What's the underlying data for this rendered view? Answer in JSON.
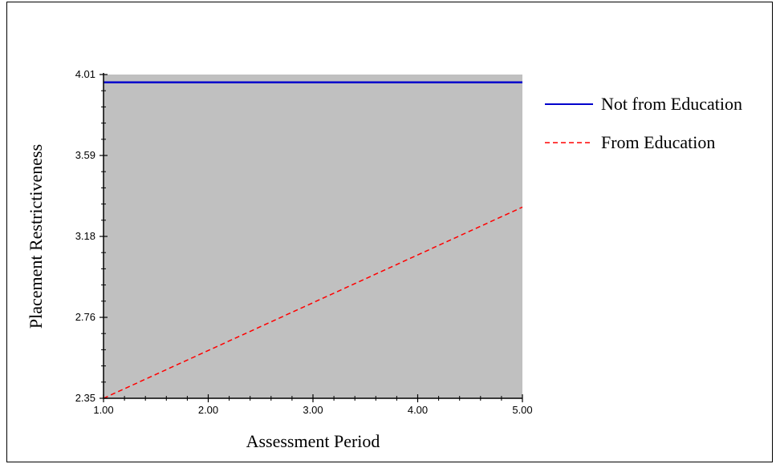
{
  "chart_data": {
    "type": "line",
    "xlabel": "Assessment Period",
    "ylabel": "Placement Restrictiveness",
    "xlim": [
      1.0,
      5.0
    ],
    "ylim": [
      2.35,
      4.01
    ],
    "xticks": [
      "1.00",
      "2.00",
      "3.00",
      "4.00",
      "5.00"
    ],
    "yticks": [
      "2.35",
      "2.76",
      "3.18",
      "3.59",
      "4.01"
    ],
    "plot_background": "#c0c0c0",
    "legend_position": "right",
    "series": [
      {
        "name": "Not from Education",
        "color": "#0000cc",
        "style": "solid",
        "x": [
          1.0,
          5.0
        ],
        "y": [
          3.97,
          3.97
        ]
      },
      {
        "name": "From Education",
        "color": "#ff0000",
        "style": "dashed",
        "x": [
          1.0,
          5.0
        ],
        "y": [
          2.35,
          3.33
        ]
      }
    ]
  }
}
